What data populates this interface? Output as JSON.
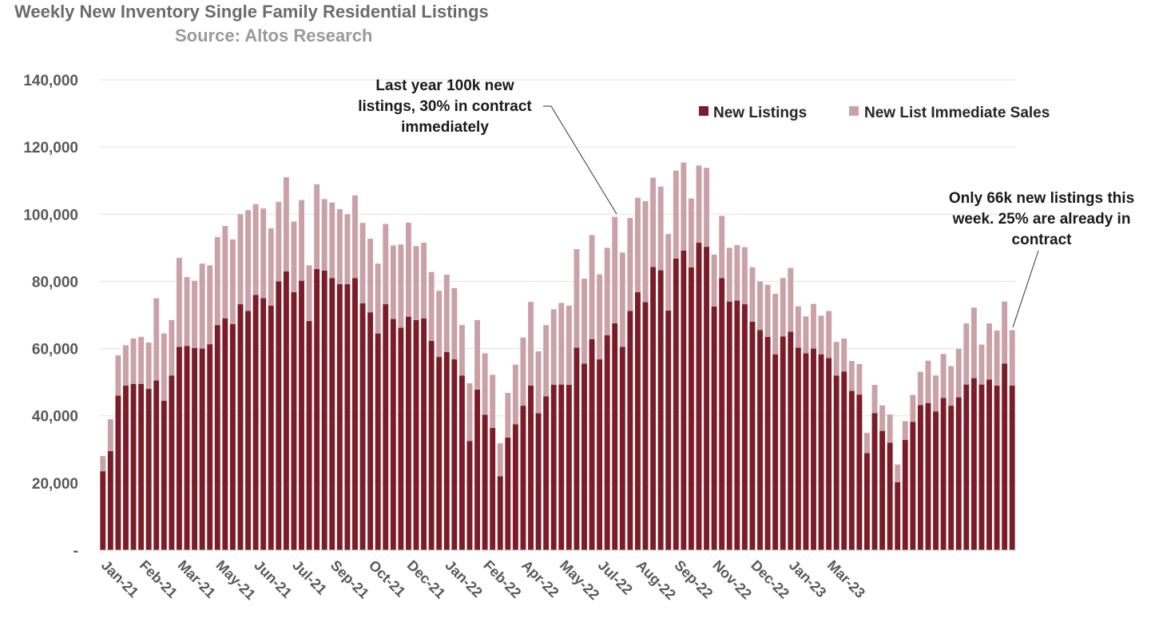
{
  "chart_data": {
    "type": "bar",
    "stacked": true,
    "title": "Weekly New Inventory Single Family Residential Listings",
    "subtitle": "Source: Altos Research",
    "ylim": [
      0,
      140000
    ],
    "yticks": [
      0,
      20000,
      40000,
      60000,
      80000,
      100000,
      120000,
      140000
    ],
    "ytick_labels": [
      "-",
      "20,000",
      "40,000",
      "60,000",
      "80,000",
      "100,000",
      "120,000",
      "140,000"
    ],
    "grid": true,
    "legend_position": "top-right",
    "x_tick_labels": [
      {
        "label": "Jan-21",
        "week": 0
      },
      {
        "label": "Feb-21",
        "week": 5
      },
      {
        "label": "Mar-21",
        "week": 10
      },
      {
        "label": "May-21",
        "week": 15
      },
      {
        "label": "Jun-21",
        "week": 20
      },
      {
        "label": "Jul-21",
        "week": 25
      },
      {
        "label": "Sep-21",
        "week": 30
      },
      {
        "label": "Oct-21",
        "week": 35
      },
      {
        "label": "Dec-21",
        "week": 40
      },
      {
        "label": "Jan-22",
        "week": 45
      },
      {
        "label": "Feb-22",
        "week": 50
      },
      {
        "label": "Apr-22",
        "week": 55
      },
      {
        "label": "May-22",
        "week": 60
      },
      {
        "label": "Jul-22",
        "week": 65
      },
      {
        "label": "Aug-22",
        "week": 70
      },
      {
        "label": "Sep-22",
        "week": 75
      },
      {
        "label": "Nov-22",
        "week": 80
      },
      {
        "label": "Dec-22",
        "week": 85
      },
      {
        "label": "Jan-23",
        "week": 90
      },
      {
        "label": "Mar-23",
        "week": 95
      }
    ],
    "series": [
      {
        "name": "New Listings",
        "color": "#7b1c28",
        "values": [
          23500,
          29500,
          46000,
          49000,
          49500,
          49500,
          48000,
          50500,
          44500,
          52000,
          60500,
          60800,
          60200,
          60000,
          61300,
          67000,
          69000,
          67300,
          73200,
          71200,
          76000,
          75000,
          72800,
          80000,
          83000,
          76800,
          80200,
          68200,
          83700,
          83200,
          81000,
          79200,
          79200,
          81000,
          73500,
          70800,
          64500,
          73200,
          68800,
          66200,
          69500,
          68500,
          69000,
          62300,
          57500,
          59000,
          56800,
          52000,
          32500,
          47800,
          40300,
          36400,
          22000,
          33500,
          37500,
          43000,
          49000,
          40800,
          45800,
          49200,
          49300,
          49200,
          60300,
          55500,
          62800,
          56800,
          64000,
          67500,
          60500,
          71200,
          76800,
          73800,
          84300,
          83300,
          71300,
          86800,
          89200,
          84200,
          91500,
          90300,
          72500,
          81000,
          74000,
          74300,
          73200,
          68000,
          65500,
          63500,
          58300,
          63600,
          65000,
          60300,
          58600,
          60000,
          58300,
          57200,
          52000,
          53200,
          47400,
          46300,
          28900,
          40800,
          35500,
          32000,
          20200,
          32800,
          38200,
          43200,
          43800,
          41300,
          45300,
          43000,
          45500,
          49300,
          51200,
          49300,
          50800,
          49000,
          55500,
          49000
        ]
      },
      {
        "name": "New List Immediate Sales",
        "color": "#c9a1a7",
        "values": [
          4500,
          9500,
          12000,
          12000,
          13500,
          14000,
          13800,
          24500,
          20000,
          16500,
          26500,
          20500,
          20000,
          25300,
          23500,
          26200,
          27500,
          25200,
          26800,
          30000,
          27000,
          26700,
          23000,
          23700,
          28000,
          21000,
          24000,
          16600,
          25200,
          21300,
          22500,
          22300,
          20800,
          24600,
          23900,
          21900,
          20800,
          23900,
          21900,
          24800,
          28000,
          22000,
          22500,
          20500,
          19700,
          23000,
          21200,
          15000,
          17200,
          20700,
          18300,
          15800,
          9800,
          13300,
          17700,
          20300,
          24900,
          18400,
          21200,
          22500,
          24300,
          23600,
          29300,
          25300,
          31000,
          25300,
          26000,
          31700,
          28100,
          27700,
          28100,
          30100,
          26600,
          24900,
          22800,
          26200,
          26200,
          20500,
          23000,
          23500,
          15500,
          18500,
          16000,
          16500,
          17000,
          16200,
          14500,
          15500,
          18000,
          17400,
          19000,
          12300,
          11000,
          13300,
          11500,
          14000,
          10000,
          9800,
          8900,
          9100,
          6000,
          8400,
          7600,
          8400,
          5300,
          5600,
          8000,
          9900,
          12600,
          10700,
          13100,
          11800,
          14400,
          18200,
          21000,
          11900,
          16700,
          16400,
          18500,
          16500
        ]
      }
    ],
    "annotations": [
      {
        "lines": [
          "Last year 100k new",
          "listings, 30% in contract",
          "immediately"
        ],
        "points_to_week": 66
      },
      {
        "lines": [
          "Only 66k new listings this",
          "week.  25% are already in",
          "contract"
        ],
        "points_to_week": 119
      }
    ]
  }
}
